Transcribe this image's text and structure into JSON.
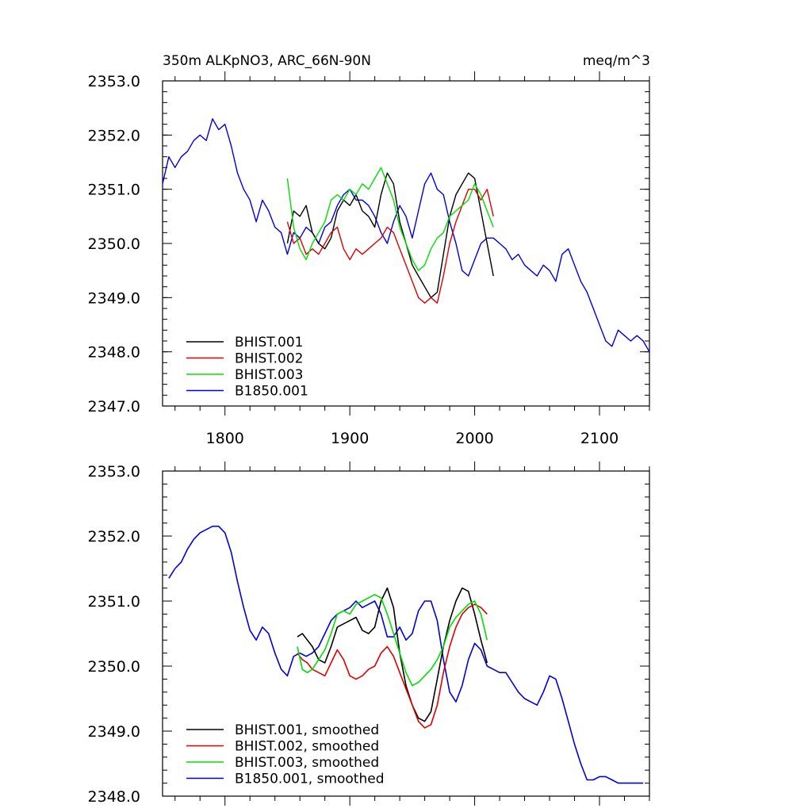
{
  "colors": {
    "BHIST.001": "#000000",
    "BHIST.002": "#e00000",
    "BHIST.003": "#00e000",
    "B1850.001": "#0000e0"
  },
  "chart_data": [
    {
      "type": "line",
      "title": "350m ALKpNO3, ARC_66N-90N",
      "units": "meq/m^3",
      "xlim": [
        1750,
        2140
      ],
      "ylim": [
        2347.0,
        2353.0
      ],
      "x_ticks": [
        1800,
        1900,
        2000,
        2100
      ],
      "x_tick_labels": [
        "1800",
        "1900",
        "2000",
        "2100"
      ],
      "y_ticks": [
        2347.0,
        2348.0,
        2349.0,
        2350.0,
        2351.0,
        2352.0,
        2353.0
      ],
      "y_tick_labels": [
        "2347.0",
        "2348.0",
        "2349.0",
        "2350.0",
        "2351.0",
        "2352.0",
        "2353.0"
      ],
      "legend_position": "bottom-left",
      "series": [
        {
          "name": "BHIST.001",
          "x": [
            1850,
            1855,
            1860,
            1865,
            1870,
            1875,
            1880,
            1885,
            1890,
            1895,
            1900,
            1905,
            1910,
            1915,
            1920,
            1925,
            1930,
            1935,
            1940,
            1945,
            1950,
            1955,
            1960,
            1965,
            1970,
            1975,
            1980,
            1985,
            1990,
            1995,
            2000,
            2005,
            2010,
            2015
          ],
          "y": [
            2350.0,
            2350.6,
            2350.5,
            2350.7,
            2350.2,
            2350.0,
            2349.9,
            2350.1,
            2350.6,
            2350.8,
            2350.7,
            2350.9,
            2350.6,
            2350.5,
            2350.3,
            2350.9,
            2351.3,
            2351.1,
            2350.4,
            2350.0,
            2349.6,
            2349.4,
            2349.2,
            2349.0,
            2349.1,
            2349.8,
            2350.5,
            2350.9,
            2351.1,
            2351.3,
            2351.2,
            2350.6,
            2350.0,
            2349.4
          ]
        },
        {
          "name": "BHIST.002",
          "x": [
            1850,
            1855,
            1860,
            1865,
            1870,
            1875,
            1880,
            1885,
            1890,
            1895,
            1900,
            1905,
            1910,
            1915,
            1920,
            1925,
            1930,
            1935,
            1940,
            1945,
            1950,
            1955,
            1960,
            1965,
            1970,
            1975,
            1980,
            1985,
            1990,
            1995,
            2000,
            2005,
            2010,
            2015
          ],
          "y": [
            2350.4,
            2350.0,
            2350.1,
            2349.8,
            2349.9,
            2349.8,
            2350.0,
            2350.2,
            2350.3,
            2349.9,
            2349.7,
            2349.9,
            2349.8,
            2349.9,
            2350.0,
            2350.1,
            2350.3,
            2350.2,
            2349.9,
            2349.6,
            2349.3,
            2349.0,
            2348.9,
            2349.0,
            2348.9,
            2349.4,
            2350.0,
            2350.4,
            2350.7,
            2351.0,
            2351.0,
            2350.8,
            2351.0,
            2350.5
          ]
        },
        {
          "name": "BHIST.003",
          "x": [
            1850,
            1855,
            1860,
            1865,
            1870,
            1875,
            1880,
            1885,
            1890,
            1895,
            1900,
            1905,
            1910,
            1915,
            1920,
            1925,
            1930,
            1935,
            1940,
            1945,
            1950,
            1955,
            1960,
            1965,
            1970,
            1975,
            1980,
            1985,
            1990,
            1995,
            2000,
            2005,
            2010,
            2015
          ],
          "y": [
            2351.2,
            2350.3,
            2349.9,
            2349.7,
            2350.0,
            2350.2,
            2350.4,
            2350.8,
            2350.9,
            2350.8,
            2351.0,
            2350.9,
            2351.1,
            2351.0,
            2351.2,
            2351.4,
            2351.1,
            2350.8,
            2350.3,
            2350.0,
            2349.7,
            2349.5,
            2349.6,
            2349.9,
            2350.1,
            2350.2,
            2350.5,
            2350.6,
            2350.7,
            2350.8,
            2351.1,
            2350.9,
            2350.6,
            2350.3
          ]
        },
        {
          "name": "B1850.001",
          "x": [
            1750,
            1755,
            1760,
            1765,
            1770,
            1775,
            1780,
            1785,
            1790,
            1795,
            1800,
            1805,
            1810,
            1815,
            1820,
            1825,
            1830,
            1835,
            1840,
            1845,
            1850,
            1855,
            1860,
            1865,
            1870,
            1875,
            1880,
            1885,
            1890,
            1895,
            1900,
            1905,
            1910,
            1915,
            1920,
            1925,
            1930,
            1935,
            1940,
            1945,
            1950,
            1955,
            1960,
            1965,
            1970,
            1975,
            1980,
            1985,
            1990,
            1995,
            2000,
            2005,
            2010,
            2015,
            2020,
            2025,
            2030,
            2035,
            2040,
            2045,
            2050,
            2055,
            2060,
            2065,
            2070,
            2075,
            2080,
            2085,
            2090,
            2095,
            2100,
            2105,
            2110,
            2115,
            2120,
            2125,
            2130,
            2135,
            2140
          ],
          "y": [
            2351.1,
            2351.6,
            2351.4,
            2351.6,
            2351.7,
            2351.9,
            2352.0,
            2351.9,
            2352.3,
            2352.1,
            2352.2,
            2351.8,
            2351.3,
            2351.0,
            2350.8,
            2350.4,
            2350.8,
            2350.6,
            2350.3,
            2350.2,
            2349.8,
            2350.2,
            2350.1,
            2350.3,
            2350.2,
            2350.0,
            2350.3,
            2350.4,
            2350.7,
            2350.9,
            2351.0,
            2350.8,
            2350.8,
            2350.7,
            2350.5,
            2350.2,
            2350.0,
            2350.4,
            2350.7,
            2350.5,
            2350.1,
            2350.6,
            2351.1,
            2351.3,
            2351.0,
            2350.9,
            2350.4,
            2350.0,
            2349.5,
            2349.4,
            2349.7,
            2350.0,
            2350.1,
            2350.1,
            2350.0,
            2349.9,
            2349.7,
            2349.8,
            2349.6,
            2349.5,
            2349.4,
            2349.6,
            2349.5,
            2349.3,
            2349.8,
            2349.9,
            2349.6,
            2349.3,
            2349.1,
            2348.8,
            2348.5,
            2348.2,
            2348.1,
            2348.4,
            2348.3,
            2348.2,
            2348.3,
            2348.2,
            2348.0
          ]
        }
      ],
      "legend": [
        "BHIST.001",
        "BHIST.002",
        "BHIST.003",
        "B1850.001"
      ]
    },
    {
      "type": "line",
      "xlim": [
        1750,
        2140
      ],
      "ylim": [
        2348.0,
        2353.0
      ],
      "x_ticks": [
        1800,
        1900,
        2000,
        2100
      ],
      "y_ticks": [
        2348.0,
        2349.0,
        2350.0,
        2351.0,
        2352.0,
        2353.0
      ],
      "y_tick_labels": [
        "2348.0",
        "2349.0",
        "2350.0",
        "2351.0",
        "2352.0",
        "2353.0"
      ],
      "legend_position": "bottom-left",
      "series": [
        {
          "name": "BHIST.001, smoothed",
          "x": [
            1858,
            1862,
            1866,
            1870,
            1875,
            1880,
            1885,
            1890,
            1895,
            1900,
            1905,
            1910,
            1915,
            1920,
            1925,
            1930,
            1935,
            1940,
            1945,
            1950,
            1955,
            1960,
            1965,
            1970,
            1975,
            1980,
            1985,
            1990,
            1995,
            2000,
            2005,
            2010
          ],
          "y": [
            2350.45,
            2350.5,
            2350.4,
            2350.3,
            2350.1,
            2350.05,
            2350.3,
            2350.6,
            2350.65,
            2350.7,
            2350.75,
            2350.55,
            2350.5,
            2350.6,
            2351.0,
            2351.2,
            2350.9,
            2350.2,
            2349.7,
            2349.4,
            2349.2,
            2349.15,
            2349.3,
            2349.8,
            2350.3,
            2350.7,
            2351.0,
            2351.2,
            2351.15,
            2350.8,
            2350.4,
            2350.05
          ]
        },
        {
          "name": "BHIST.002, smoothed",
          "x": [
            1858,
            1862,
            1866,
            1870,
            1875,
            1880,
            1885,
            1890,
            1895,
            1900,
            1905,
            1910,
            1915,
            1920,
            1925,
            1930,
            1935,
            1940,
            1945,
            1950,
            1955,
            1960,
            1965,
            1970,
            1975,
            1980,
            1985,
            1990,
            1995,
            2000,
            2005,
            2010
          ],
          "y": [
            2350.2,
            2350.1,
            2350.05,
            2349.95,
            2349.9,
            2349.85,
            2350.05,
            2350.25,
            2350.1,
            2349.85,
            2349.8,
            2349.85,
            2349.95,
            2350.0,
            2350.2,
            2350.3,
            2350.15,
            2349.9,
            2349.65,
            2349.4,
            2349.15,
            2349.05,
            2349.1,
            2349.4,
            2349.9,
            2350.3,
            2350.6,
            2350.8,
            2350.9,
            2350.95,
            2350.9,
            2350.8
          ]
        },
        {
          "name": "BHIST.003, smoothed",
          "x": [
            1858,
            1862,
            1866,
            1870,
            1875,
            1880,
            1885,
            1890,
            1895,
            1900,
            1905,
            1910,
            1915,
            1920,
            1925,
            1930,
            1935,
            1940,
            1945,
            1950,
            1955,
            1960,
            1965,
            1970,
            1975,
            1980,
            1985,
            1990,
            1995,
            2000,
            2005,
            2010
          ],
          "y": [
            2350.3,
            2349.95,
            2349.9,
            2349.95,
            2350.1,
            2350.25,
            2350.5,
            2350.8,
            2350.85,
            2350.8,
            2350.95,
            2351.0,
            2351.05,
            2351.1,
            2351.05,
            2350.8,
            2350.5,
            2350.2,
            2349.9,
            2349.7,
            2349.75,
            2349.85,
            2349.95,
            2350.1,
            2350.3,
            2350.6,
            2350.75,
            2350.85,
            2350.95,
            2351.0,
            2350.8,
            2350.4
          ]
        },
        {
          "name": "B1850.001, smoothed",
          "x": [
            1755,
            1760,
            1765,
            1770,
            1775,
            1780,
            1785,
            1790,
            1795,
            1800,
            1805,
            1810,
            1815,
            1820,
            1825,
            1830,
            1835,
            1840,
            1845,
            1850,
            1855,
            1860,
            1865,
            1870,
            1875,
            1880,
            1885,
            1890,
            1895,
            1900,
            1905,
            1910,
            1915,
            1920,
            1925,
            1930,
            1935,
            1940,
            1945,
            1950,
            1955,
            1960,
            1965,
            1970,
            1975,
            1980,
            1985,
            1990,
            1995,
            2000,
            2005,
            2010,
            2015,
            2020,
            2025,
            2030,
            2035,
            2040,
            2045,
            2050,
            2055,
            2060,
            2065,
            2070,
            2075,
            2080,
            2085,
            2090,
            2095,
            2100,
            2105,
            2110,
            2115,
            2120,
            2125,
            2130,
            2135
          ],
          "y": [
            2351.35,
            2351.5,
            2351.6,
            2351.8,
            2351.95,
            2352.05,
            2352.1,
            2352.15,
            2352.15,
            2352.05,
            2351.75,
            2351.3,
            2350.9,
            2350.55,
            2350.4,
            2350.6,
            2350.5,
            2350.2,
            2349.95,
            2349.85,
            2350.15,
            2350.2,
            2350.15,
            2350.2,
            2350.3,
            2350.5,
            2350.7,
            2350.8,
            2350.85,
            2350.9,
            2351.0,
            2350.9,
            2350.95,
            2351.0,
            2350.8,
            2350.45,
            2350.45,
            2350.6,
            2350.4,
            2350.5,
            2350.85,
            2351.0,
            2351.0,
            2350.7,
            2350.1,
            2349.6,
            2349.45,
            2349.7,
            2350.1,
            2350.35,
            2350.25,
            2350.0,
            2349.95,
            2349.9,
            2349.9,
            2349.75,
            2349.6,
            2349.5,
            2349.45,
            2349.4,
            2349.6,
            2349.85,
            2349.8,
            2349.5,
            2349.15,
            2348.8,
            2348.5,
            2348.25,
            2348.25,
            2348.3,
            2348.3,
            2348.25,
            2348.2,
            2348.2,
            2348.2,
            2348.2,
            2348.2
          ]
        }
      ],
      "legend": [
        "BHIST.001, smoothed",
        "BHIST.002, smoothed",
        "BHIST.003, smoothed",
        "B1850.001, smoothed"
      ]
    }
  ]
}
